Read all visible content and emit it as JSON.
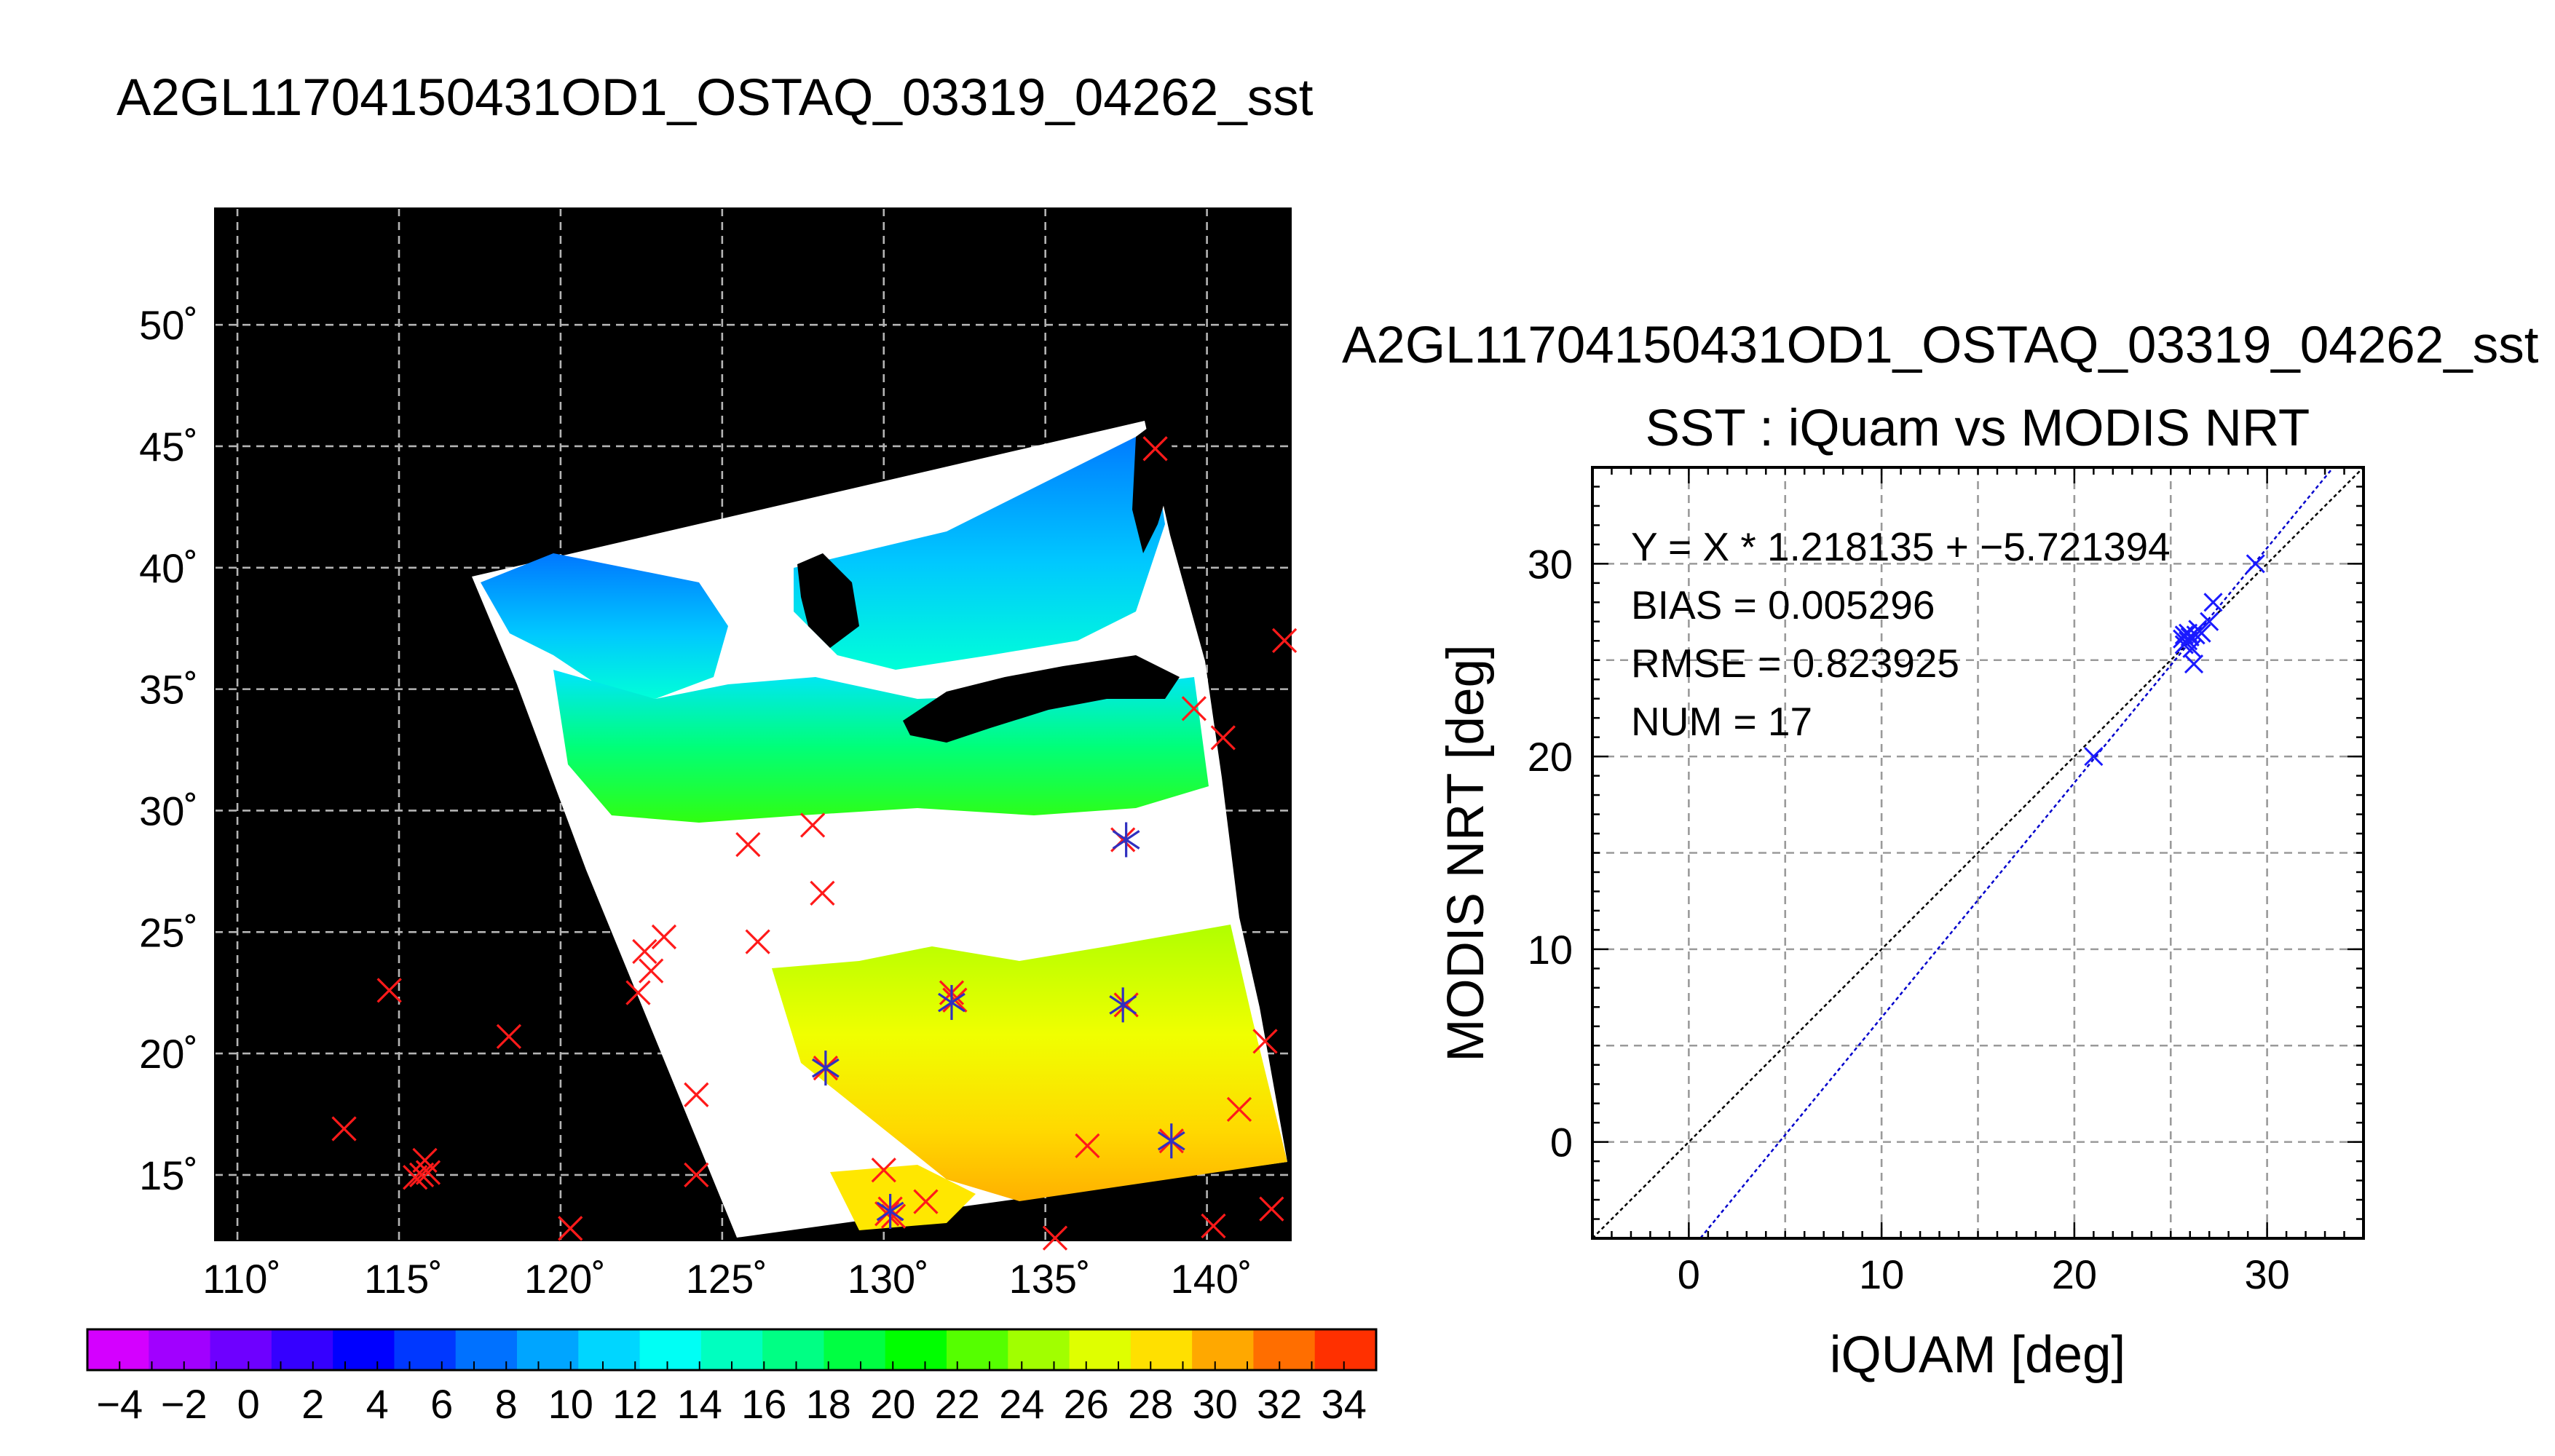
{
  "main_title": "A2GL11704150431OD1_OSTAQ_03319_04262_sst",
  "map": {
    "lon_ticks": [
      "110˚",
      "115˚",
      "120˚",
      "125˚",
      "130˚",
      "135˚",
      "140˚"
    ],
    "lat_ticks": [
      "15˚",
      "20˚",
      "25˚",
      "30˚",
      "35˚",
      "40˚",
      "45˚",
      "50˚"
    ],
    "lon_range": [
      109.3,
      142.6
    ],
    "lat_range": [
      12.3,
      54.8
    ],
    "colorbar_ticks": [
      "−4",
      "−2",
      "0",
      "2",
      "4",
      "6",
      "8",
      "10",
      "12",
      "14",
      "16",
      "18",
      "20",
      "22",
      "24",
      "26",
      "28",
      "30",
      "32",
      "34"
    ],
    "colorbar_range": [
      -5,
      35
    ],
    "colorbar_colors": [
      "#d400ff",
      "#a100ff",
      "#6e00ff",
      "#3500ff",
      "#0000ff",
      "#0038ff",
      "#0071ff",
      "#00a5ff",
      "#00d6ff",
      "#00fff5",
      "#00ffbf",
      "#00ff84",
      "#00ff42",
      "#00ff00",
      "#55ff00",
      "#a1ff00",
      "#dfff00",
      "#ffe000",
      "#ffa800",
      "#ff6e00",
      "#ff3000"
    ],
    "insitu_points": [
      [
        114.7,
        22.6
      ],
      [
        113.3,
        16.9
      ],
      [
        115.7,
        15.0
      ],
      [
        115.8,
        15.6
      ],
      [
        115.5,
        14.9
      ],
      [
        115.9,
        15.1
      ],
      [
        118.4,
        20.7
      ],
      [
        120.3,
        12.8
      ],
      [
        122.4,
        22.5
      ],
      [
        122.6,
        24.2
      ],
      [
        122.8,
        23.4
      ],
      [
        123.2,
        24.8
      ],
      [
        124.2,
        18.3
      ],
      [
        124.2,
        15.0
      ],
      [
        125.8,
        28.6
      ],
      [
        126.1,
        24.6
      ],
      [
        127.8,
        29.4
      ],
      [
        128.1,
        26.6
      ],
      [
        128.2,
        19.4
      ],
      [
        130.0,
        15.2
      ],
      [
        130.1,
        13.4
      ],
      [
        130.2,
        13.6
      ],
      [
        130.3,
        13.3
      ],
      [
        131.3,
        13.9
      ],
      [
        132.2,
        22.2
      ],
      [
        132.1,
        22.5
      ],
      [
        135.3,
        12.4
      ],
      [
        136.3,
        16.2
      ],
      [
        137.5,
        22.0
      ],
      [
        137.4,
        28.8
      ],
      [
        138.4,
        44.9
      ],
      [
        138.9,
        16.4
      ],
      [
        139.6,
        34.2
      ],
      [
        140.2,
        12.9
      ],
      [
        140.5,
        33.0
      ],
      [
        141.0,
        17.7
      ],
      [
        141.8,
        20.5
      ],
      [
        142.0,
        13.6
      ],
      [
        142.4,
        37.0
      ]
    ],
    "matched_points": [
      [
        128.2,
        19.4
      ],
      [
        132.1,
        22.1
      ],
      [
        137.4,
        22.0
      ],
      [
        137.5,
        28.8
      ],
      [
        138.9,
        16.4
      ],
      [
        130.2,
        13.5
      ]
    ]
  },
  "chart_data": {
    "type": "scatter",
    "title": "A2GL11704150431OD1_OSTAQ_03319_04262_sst",
    "subtitle": "SST : iQuam vs MODIS NRT",
    "xlabel": "iQUAM [deg]",
    "ylabel": "MODIS NRT [deg]",
    "xlim": [
      -5,
      35
    ],
    "ylim": [
      -5,
      35
    ],
    "xticks": [
      "0",
      "10",
      "20",
      "30"
    ],
    "yticks": [
      "0",
      "10",
      "20",
      "30"
    ],
    "grid": true,
    "stats": [
      "Y = X * 1.218135 + −5.721394",
      "BIAS = 0.005296",
      "RMSE = 0.823925",
      "NUM = 17"
    ],
    "series": [
      {
        "marker": "x",
        "color": "#1a1aff",
        "x": [
          21.0,
          25.6,
          25.7,
          25.8,
          25.9,
          26.0,
          25.7,
          25.9,
          26.1,
          26.3,
          26.2,
          26.6,
          27.0,
          27.2,
          26.4,
          29.4,
          25.8
        ],
        "y": [
          20.0,
          26.1,
          26.3,
          25.9,
          26.0,
          26.2,
          25.8,
          26.4,
          25.6,
          26.3,
          24.8,
          26.4,
          27.0,
          28.0,
          26.6,
          30.0,
          25.9
        ]
      }
    ],
    "lines": [
      {
        "label": "1:1",
        "slope": 1.0,
        "intercept": 0.0,
        "color": "#000000"
      },
      {
        "label": "fit",
        "slope": 1.218135,
        "intercept": -5.721394,
        "color": "#0000cc"
      }
    ]
  },
  "colors": {
    "land_black": "#000000",
    "insitu_marker": "#ff1a1a",
    "matched_marker": "#3030c0",
    "scatter_marker": "#1a1aff",
    "fit_line": "#0000cc"
  }
}
